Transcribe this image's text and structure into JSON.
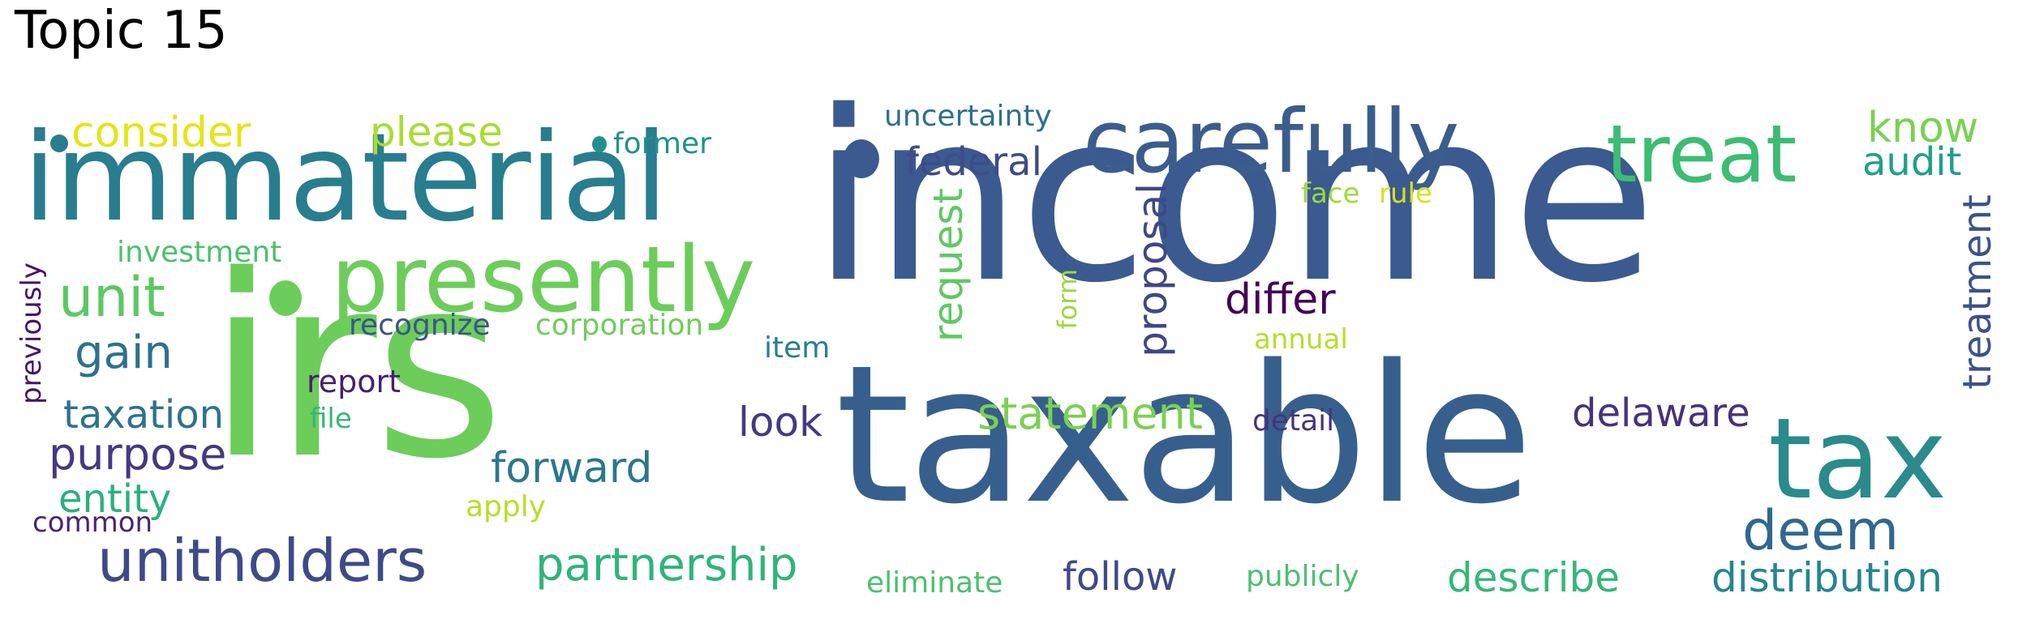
{
  "title": "Topic 15",
  "words": [
    {
      "text": "income",
      "color": "#3b5a8f"
    },
    {
      "text": "irs",
      "color": "#6ccd5a"
    },
    {
      "text": "taxable",
      "color": "#375f8d"
    },
    {
      "text": "immaterial",
      "color": "#287d8e"
    },
    {
      "text": "carefully",
      "color": "#3b5d8e"
    },
    {
      "text": "presently",
      "color": "#6ccd5a"
    },
    {
      "text": "treat",
      "color": "#3dbc74"
    },
    {
      "text": "tax",
      "color": "#2a8a8c"
    },
    {
      "text": "unitholders",
      "color": "#3e4a89"
    },
    {
      "text": "unit",
      "color": "#5cc863"
    },
    {
      "text": "partnership",
      "color": "#2fb47c"
    },
    {
      "text": "deem",
      "color": "#31688e"
    },
    {
      "text": "gain",
      "color": "#2c728e"
    },
    {
      "text": "statement",
      "color": "#7ad151"
    },
    {
      "text": "purpose",
      "color": "#443983"
    },
    {
      "text": "taxation",
      "color": "#2c738e"
    },
    {
      "text": "entity",
      "color": "#2ab07f"
    },
    {
      "text": "forward",
      "color": "#2a788e"
    },
    {
      "text": "delaware",
      "color": "#46327e"
    },
    {
      "text": "describe",
      "color": "#35b779"
    },
    {
      "text": "distribution",
      "color": "#24868e"
    },
    {
      "text": "consider",
      "color": "#e5e419"
    },
    {
      "text": "please",
      "color": "#aadc32"
    },
    {
      "text": "know",
      "color": "#7ad151"
    },
    {
      "text": "audit",
      "color": "#1fa088"
    },
    {
      "text": "federal",
      "color": "#3e4c8a"
    },
    {
      "text": "differ",
      "color": "#440154"
    },
    {
      "text": "follow",
      "color": "#3e4989"
    },
    {
      "text": "look",
      "color": "#443a83"
    },
    {
      "text": "request",
      "color": "#5ec962"
    },
    {
      "text": "proposal",
      "color": "#3f4788"
    },
    {
      "text": "treatment",
      "color": "#3b528b"
    },
    {
      "text": "uncertainty",
      "color": "#2d708e"
    },
    {
      "text": "former",
      "color": "#21918c"
    },
    {
      "text": "investment",
      "color": "#4ac16d"
    },
    {
      "text": "recognize",
      "color": "#3a548c"
    },
    {
      "text": "corporation",
      "color": "#6ece58"
    },
    {
      "text": "report",
      "color": "#481f70"
    },
    {
      "text": "file",
      "color": "#35b779"
    },
    {
      "text": "item",
      "color": "#277f8e"
    },
    {
      "text": "annual",
      "color": "#9bd93c"
    },
    {
      "text": "form",
      "color": "#b5de2b"
    },
    {
      "text": "detail",
      "color": "#46337e"
    },
    {
      "text": "face",
      "color": "#9bd93c"
    },
    {
      "text": "rule",
      "color": "#d8e219"
    },
    {
      "text": "previously",
      "color": "#471365"
    },
    {
      "text": "common",
      "color": "#482475"
    },
    {
      "text": "apply",
      "color": "#b8de29"
    },
    {
      "text": "eliminate",
      "color": "#4ac16d"
    },
    {
      "text": "publicly",
      "color": "#4ac16d"
    }
  ]
}
